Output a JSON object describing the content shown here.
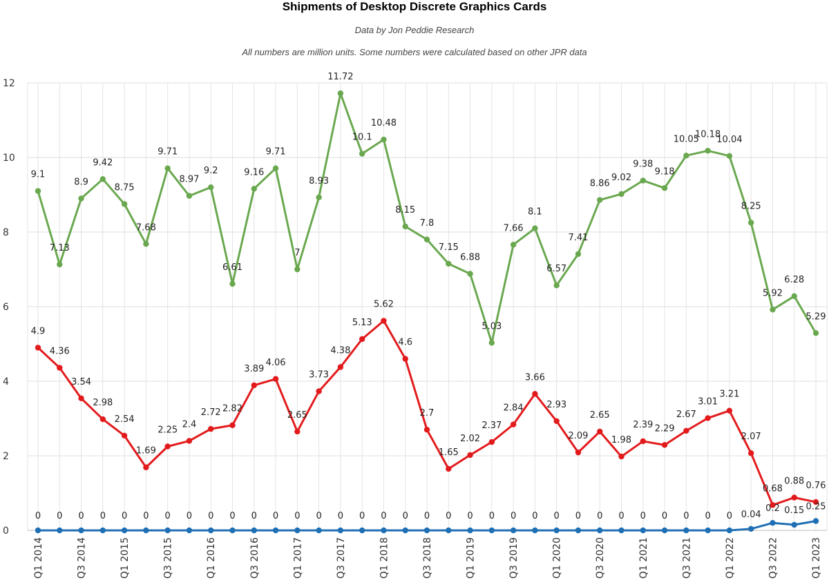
{
  "chart_data": {
    "type": "line",
    "title": "Shipments of Desktop Discrete Graphics Cards",
    "subtitle": "Data by Jon Peddie Research",
    "note": "All numbers are million units. Some numbers were calculated based on other JPR data",
    "xlabel": "",
    "ylabel": "",
    "ylim": [
      0,
      12
    ],
    "yticks": [
      0,
      2,
      4,
      6,
      8,
      10,
      12
    ],
    "grid": true,
    "categories": [
      "Q1 2014",
      "Q2 2014",
      "Q3 2014",
      "Q4 2014",
      "Q1 2015",
      "Q2 2015",
      "Q3 2015",
      "Q4 2015",
      "Q1 2016",
      "Q2 2016",
      "Q3 2016",
      "Q4 2016",
      "Q1 2017",
      "Q2 2017",
      "Q3 2017",
      "Q4 2017",
      "Q1 2018",
      "Q2 2018",
      "Q3 2018",
      "Q4 2018",
      "Q1 2019",
      "Q2 2019",
      "Q3 2019",
      "Q4 2019",
      "Q1 2020",
      "Q2 2020",
      "Q3 2020",
      "Q4 2020",
      "Q1 2021",
      "Q2 2021",
      "Q3 2021",
      "Q4 2021",
      "Q1 2022",
      "Q2 2022",
      "Q3 2022",
      "Q4 2022",
      "Q1 2023"
    ],
    "tick_labels": [
      "Q1 2014",
      "",
      "Q3 2014",
      "",
      "Q1 2015",
      "",
      "Q3 2015",
      "",
      "Q1 2016",
      "",
      "Q3 2016",
      "",
      "Q1 2017",
      "",
      "Q3 2017",
      "",
      "Q1 2018",
      "",
      "Q3 2018",
      "",
      "Q1 2019",
      "",
      "Q3 2019",
      "",
      "Q1 2020",
      "",
      "Q3 2020",
      "",
      "Q1 2021",
      "",
      "Q3 2021",
      "",
      "Q1 2022",
      "",
      "Q3 2022",
      "",
      "Q1 2023"
    ],
    "series": [
      {
        "color": "#6aa84f",
        "values": [
          9.1,
          7.13,
          8.9,
          9.42,
          8.75,
          7.68,
          9.71,
          8.97,
          9.2,
          6.61,
          9.16,
          9.71,
          7,
          8.93,
          11.72,
          10.1,
          10.48,
          8.15,
          7.8,
          7.15,
          6.88,
          5.03,
          7.66,
          8.1,
          6.57,
          7.41,
          8.86,
          9.02,
          9.38,
          9.18,
          10.05,
          10.18,
          10.04,
          8.25,
          5.92,
          6.28,
          5.29
        ]
      },
      {
        "color": "#e31a1c",
        "values": [
          4.9,
          4.36,
          3.54,
          2.98,
          2.54,
          1.69,
          2.25,
          2.4,
          2.72,
          2.82,
          3.89,
          4.06,
          2.65,
          3.73,
          4.38,
          5.13,
          5.62,
          4.6,
          2.7,
          1.65,
          2.02,
          2.37,
          2.84,
          3.66,
          2.93,
          2.09,
          2.65,
          1.98,
          2.39,
          2.29,
          2.67,
          3.01,
          3.21,
          2.07,
          0.68,
          0.88,
          0.76
        ]
      },
      {
        "color": "#1f6fb4",
        "values": [
          0,
          0,
          0,
          0,
          0,
          0,
          0,
          0,
          0,
          0,
          0,
          0,
          0,
          0,
          0,
          0,
          0,
          0,
          0,
          0,
          0,
          0,
          0,
          0,
          0,
          0,
          0,
          0,
          0,
          0,
          0,
          0,
          0,
          0.04,
          0.2,
          0.15,
          0.25
        ]
      }
    ]
  }
}
